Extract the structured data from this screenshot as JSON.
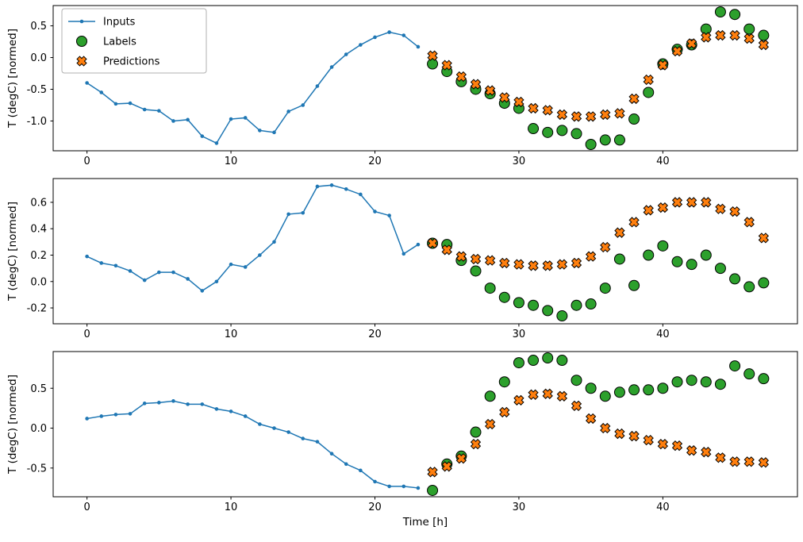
{
  "chart_data": {
    "type": "line",
    "title": "",
    "xlabel": "Time [h]",
    "ylabel": "T (degC) [normed]",
    "x_ticks": [
      0,
      10,
      20,
      30,
      40
    ],
    "xlim": [
      -2.35,
      49.35
    ],
    "grid": false,
    "legend_position": "upper-left of first subplot",
    "legend": [
      {
        "label": "Inputs",
        "marker": "line-dot",
        "color": "#1f77b4"
      },
      {
        "label": "Labels",
        "marker": "circle",
        "color": "#2ca02c"
      },
      {
        "label": "Predictions",
        "marker": "x",
        "color": "#ff7f0e"
      }
    ],
    "subplots": [
      {
        "ylabel": "T (degC) [normed]",
        "ylim": [
          -1.47,
          0.82
        ],
        "y_ticks": [
          0.5,
          0.0,
          -0.5,
          -1.0
        ],
        "series": [
          {
            "name": "Inputs",
            "style": "line",
            "color": "#1f77b4",
            "x": [
              0,
              1,
              2,
              3,
              4,
              5,
              6,
              7,
              8,
              9,
              10,
              11,
              12,
              13,
              14,
              15,
              16,
              17,
              18,
              19,
              20,
              21,
              22,
              23
            ],
            "values": [
              -0.4,
              -0.55,
              -0.73,
              -0.72,
              -0.82,
              -0.84,
              -1.0,
              -0.98,
              -1.24,
              -1.35,
              -0.97,
              -0.95,
              -1.15,
              -1.18,
              -0.85,
              -0.75,
              -0.45,
              -0.15,
              0.05,
              0.2,
              0.32,
              0.4,
              0.35,
              0.17
            ]
          },
          {
            "name": "Labels",
            "style": "circle",
            "color": "#2ca02c",
            "x": [
              24,
              25,
              26,
              27,
              28,
              29,
              30,
              31,
              32,
              33,
              34,
              35,
              36,
              37,
              38,
              39,
              40,
              41,
              42,
              43,
              44,
              45,
              46,
              47
            ],
            "values": [
              -0.1,
              -0.22,
              -0.38,
              -0.5,
              -0.57,
              -0.72,
              -0.8,
              -1.12,
              -1.18,
              -1.15,
              -1.2,
              -1.37,
              -1.3,
              -1.3,
              -0.97,
              -0.55,
              -0.1,
              0.13,
              0.2,
              0.45,
              0.72,
              0.68,
              0.45,
              0.35
            ]
          },
          {
            "name": "Predictions",
            "style": "x",
            "color": "#ff7f0e",
            "x": [
              24,
              25,
              26,
              27,
              28,
              29,
              30,
              31,
              32,
              33,
              34,
              35,
              36,
              37,
              38,
              39,
              40,
              41,
              42,
              43,
              44,
              45,
              46,
              47
            ],
            "values": [
              0.03,
              -0.12,
              -0.3,
              -0.42,
              -0.52,
              -0.63,
              -0.7,
              -0.8,
              -0.83,
              -0.9,
              -0.93,
              -0.93,
              -0.9,
              -0.88,
              -0.65,
              -0.35,
              -0.12,
              0.1,
              0.22,
              0.32,
              0.35,
              0.35,
              0.3,
              0.2
            ]
          }
        ]
      },
      {
        "ylabel": "T (degC) [normed]",
        "ylim": [
          -0.32,
          0.78
        ],
        "y_ticks": [
          0.6,
          0.4,
          0.2,
          0.0,
          -0.2
        ],
        "series": [
          {
            "name": "Inputs",
            "style": "line",
            "color": "#1f77b4",
            "x": [
              0,
              1,
              2,
              3,
              4,
              5,
              6,
              7,
              8,
              9,
              10,
              11,
              12,
              13,
              14,
              15,
              16,
              17,
              18,
              19,
              20,
              21,
              22,
              23
            ],
            "values": [
              0.19,
              0.14,
              0.12,
              0.08,
              0.01,
              0.07,
              0.07,
              0.02,
              -0.07,
              0.0,
              0.13,
              0.11,
              0.2,
              0.3,
              0.51,
              0.52,
              0.72,
              0.73,
              0.7,
              0.66,
              0.53,
              0.5,
              0.21,
              0.28
            ]
          },
          {
            "name": "Labels",
            "style": "circle",
            "color": "#2ca02c",
            "x": [
              24,
              25,
              26,
              27,
              28,
              29,
              30,
              31,
              32,
              33,
              34,
              35,
              36,
              37,
              38,
              39,
              40,
              41,
              42,
              43,
              44,
              45,
              46,
              47
            ],
            "values": [
              0.29,
              0.28,
              0.16,
              0.08,
              -0.05,
              -0.12,
              -0.16,
              -0.18,
              -0.22,
              -0.26,
              -0.18,
              -0.17,
              -0.05,
              0.17,
              -0.03,
              0.2,
              0.27,
              0.15,
              0.13,
              0.2,
              0.1,
              0.02,
              -0.04,
              -0.01
            ]
          },
          {
            "name": "Predictions",
            "style": "x",
            "color": "#ff7f0e",
            "x": [
              24,
              25,
              26,
              27,
              28,
              29,
              30,
              31,
              32,
              33,
              34,
              35,
              36,
              37,
              38,
              39,
              40,
              41,
              42,
              43,
              44,
              45,
              46,
              47
            ],
            "values": [
              0.29,
              0.24,
              0.19,
              0.17,
              0.16,
              0.14,
              0.13,
              0.12,
              0.12,
              0.13,
              0.14,
              0.19,
              0.26,
              0.37,
              0.45,
              0.54,
              0.56,
              0.6,
              0.6,
              0.6,
              0.55,
              0.53,
              0.45,
              0.33
            ]
          }
        ]
      },
      {
        "ylabel": "T (degC) [normed]",
        "ylim": [
          -0.86,
          0.96
        ],
        "y_ticks": [
          0.5,
          0.0,
          -0.5
        ],
        "series": [
          {
            "name": "Inputs",
            "style": "line",
            "color": "#1f77b4",
            "x": [
              0,
              1,
              2,
              3,
              4,
              5,
              6,
              7,
              8,
              9,
              10,
              11,
              12,
              13,
              14,
              15,
              16,
              17,
              18,
              19,
              20,
              21,
              22,
              23
            ],
            "values": [
              0.12,
              0.15,
              0.17,
              0.18,
              0.31,
              0.32,
              0.34,
              0.3,
              0.3,
              0.24,
              0.21,
              0.15,
              0.05,
              0.0,
              -0.05,
              -0.13,
              -0.17,
              -0.32,
              -0.45,
              -0.53,
              -0.67,
              -0.73,
              -0.73,
              -0.75
            ]
          },
          {
            "name": "Labels",
            "style": "circle",
            "color": "#2ca02c",
            "x": [
              24,
              25,
              26,
              27,
              28,
              29,
              30,
              31,
              32,
              33,
              34,
              35,
              36,
              37,
              38,
              39,
              40,
              41,
              42,
              43,
              44,
              45,
              46,
              47
            ],
            "values": [
              -0.78,
              -0.45,
              -0.35,
              -0.05,
              0.4,
              0.58,
              0.82,
              0.85,
              0.88,
              0.85,
              0.6,
              0.5,
              0.4,
              0.45,
              0.48,
              0.48,
              0.5,
              0.58,
              0.6,
              0.58,
              0.55,
              0.78,
              0.68,
              0.62
            ]
          },
          {
            "name": "Predictions",
            "style": "x",
            "color": "#ff7f0e",
            "x": [
              24,
              25,
              26,
              27,
              28,
              29,
              30,
              31,
              32,
              33,
              34,
              35,
              36,
              37,
              38,
              39,
              40,
              41,
              42,
              43,
              44,
              45,
              46,
              47
            ],
            "values": [
              -0.55,
              -0.48,
              -0.38,
              -0.2,
              0.05,
              0.2,
              0.35,
              0.42,
              0.43,
              0.4,
              0.28,
              0.12,
              0.0,
              -0.07,
              -0.1,
              -0.15,
              -0.2,
              -0.22,
              -0.28,
              -0.3,
              -0.37,
              -0.42,
              -0.42,
              -0.43
            ]
          }
        ]
      }
    ]
  }
}
